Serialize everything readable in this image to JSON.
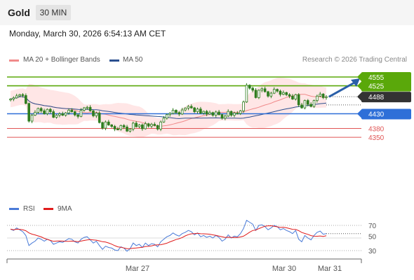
{
  "header": {
    "instrument": "Gold",
    "timeframe": "30 MIN"
  },
  "datetime": "Monday, March 30, 2026 6:54:13 AM CET",
  "legend": {
    "bb_label": "MA 20 + Bollinger Bands",
    "ma50_label": "MA 50",
    "credit": "Research © 2026 Trading Central"
  },
  "rsi_legend": {
    "rsi_label": "RSI",
    "ma_label": "9MA"
  },
  "colors": {
    "resistance": "#5aa80a",
    "support": "#2e6fd8",
    "lowlevel": "#e05555",
    "candle": "#2e7d1e",
    "bb_fill": "#ffdede",
    "ma20": "#f08a8a",
    "ma50": "#2b4f8f",
    "rsi": "#4a7bd8",
    "rsi_ma": "#e01c1c",
    "arrow": "#2a5fa8",
    "current": "#333333"
  },
  "chart_data": [
    {
      "type": "candlestick",
      "title": "Gold 30 MIN",
      "ylim": [
        4340,
        4565
      ],
      "x_tick_labels": [
        "Mar 27",
        "Mar 30",
        "Mar 31"
      ],
      "close": [
        4480,
        4484,
        4491,
        4495,
        4492,
        4465,
        4405,
        4425,
        4435,
        4448,
        4440,
        4430,
        4445,
        4437,
        4418,
        4425,
        4430,
        4425,
        4433,
        4442,
        4437,
        4426,
        4421,
        4442,
        4450,
        4452,
        4440,
        4423,
        4432,
        4400,
        4381,
        4402,
        4392,
        4387,
        4378,
        4377,
        4390,
        4385,
        4371,
        4378,
        4398,
        4386,
        4392,
        4379,
        4396,
        4388,
        4394,
        4390,
        4378,
        4402,
        4415,
        4427,
        4431,
        4442,
        4434,
        4429,
        4443,
        4449,
        4455,
        4450,
        4437,
        4446,
        4432,
        4438,
        4429,
        4434,
        4425,
        4436,
        4427,
        4415,
        4422,
        4438,
        4425,
        4432,
        4431,
        4440,
        4470,
        4527,
        4517,
        4510,
        4485,
        4510,
        4515,
        4505,
        4490,
        4500,
        4513,
        4507,
        4496,
        4502,
        4495,
        4490,
        4480,
        4495,
        4460,
        4450,
        4475,
        4462,
        4455,
        4475,
        4490,
        4497,
        4485,
        4488
      ],
      "key_levels": [
        {
          "label": "4555",
          "value": 4555,
          "kind": "resistance"
        },
        {
          "label": "4525",
          "value": 4525,
          "kind": "resistance"
        },
        {
          "label": "4488",
          "value": 4488,
          "kind": "current"
        },
        {
          "label": "4430",
          "value": 4430,
          "kind": "support"
        },
        {
          "label": "4380",
          "value": 4380,
          "kind": "low"
        },
        {
          "label": "4350",
          "value": 4350,
          "kind": "low"
        }
      ],
      "series": [
        {
          "name": "MA 20 + Bollinger Bands"
        },
        {
          "name": "MA 50"
        }
      ]
    },
    {
      "type": "line",
      "title": "RSI",
      "ylim": [
        20,
        80
      ],
      "y_ticks": [
        "70",
        "50",
        "30"
      ],
      "series": [
        {
          "name": "RSI",
          "values": [
            64,
            62,
            66,
            63,
            60,
            54,
            38,
            42,
            45,
            50,
            48,
            45,
            48,
            46,
            40,
            42,
            44,
            43,
            46,
            49,
            48,
            44,
            42,
            48,
            51,
            52,
            47,
            42,
            45,
            38,
            32,
            37,
            35,
            34,
            31,
            30,
            36,
            34,
            29,
            33,
            42,
            38,
            40,
            35,
            42,
            38,
            41,
            40,
            36,
            44,
            48,
            52,
            54,
            58,
            55,
            53,
            57,
            59,
            62,
            60,
            55,
            58,
            52,
            54,
            51,
            53,
            50,
            54,
            51,
            45,
            48,
            55,
            50,
            53,
            52,
            57,
            65,
            78,
            75,
            72,
            62,
            70,
            71,
            68,
            63,
            66,
            70,
            68,
            63,
            65,
            62,
            60,
            57,
            62,
            48,
            44,
            54,
            50,
            47,
            54,
            59,
            61,
            56,
            57
          ]
        },
        {
          "name": "9MA"
        }
      ]
    }
  ]
}
